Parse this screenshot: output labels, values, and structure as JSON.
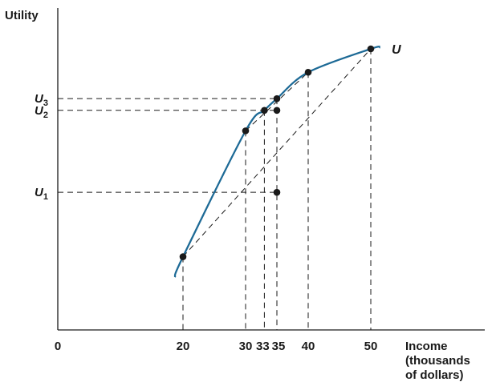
{
  "chart_data": {
    "type": "line",
    "ylabel": "Utility",
    "xlabel_lines": [
      "Income",
      "(thousands",
      "of dollars)"
    ],
    "origin_label": "0",
    "x_ticks": [
      {
        "value": 20,
        "label": "20"
      },
      {
        "value": 30,
        "label": "30"
      },
      {
        "value": 33,
        "label": "33"
      },
      {
        "value": 35,
        "label": "35"
      },
      {
        "value": 40,
        "label": "40"
      },
      {
        "value": 50,
        "label": "50"
      }
    ],
    "y_ticks": [
      {
        "key": "U3",
        "base": "U",
        "sub": "3"
      },
      {
        "key": "U2",
        "base": "U",
        "sub": "2"
      },
      {
        "key": "U1",
        "base": "U",
        "sub": "1"
      }
    ],
    "curve_label": "U",
    "series": [
      {
        "curve": [
          [
            18.7,
            0.18
          ],
          [
            20,
            0.25
          ],
          [
            30,
            0.68
          ],
          [
            33,
            0.75
          ],
          [
            35,
            0.79
          ],
          [
            40,
            0.88
          ],
          [
            50,
            0.96
          ],
          [
            51.5,
            0.965
          ]
        ]
      }
    ],
    "points": [
      {
        "x": 20,
        "y": 0.25
      },
      {
        "x": 30,
        "y": 0.68
      },
      {
        "x": 33,
        "y": 0.75
      },
      {
        "x": 35,
        "y": 0.79
      },
      {
        "x": 35,
        "y": 0.75
      },
      {
        "x": 35,
        "y": 0.47
      },
      {
        "x": 40,
        "y": 0.88
      },
      {
        "x": 50,
        "y": 0.96
      }
    ],
    "chords": [
      {
        "from": [
          20,
          0.25
        ],
        "to": [
          50,
          0.96
        ]
      },
      {
        "from": [
          30,
          0.68
        ],
        "to": [
          40,
          0.88
        ]
      }
    ],
    "vertical_guides": [
      {
        "x": 20,
        "y": 0.25
      },
      {
        "x": 30,
        "y": 0.68
      },
      {
        "x": 33,
        "y": 0.75
      },
      {
        "x": 35,
        "y": 0.79
      },
      {
        "x": 40,
        "y": 0.88
      },
      {
        "x": 50,
        "y": 0.96
      }
    ],
    "horizontal_guides": [
      {
        "key": "U3",
        "y": 0.79,
        "x_end": 35
      },
      {
        "key": "U2",
        "y": 0.75,
        "x_end": 35
      },
      {
        "key": "U1",
        "y": 0.47,
        "x_end": 35
      }
    ],
    "xlim": [
      0,
      63
    ],
    "ylim": [
      0,
      1.1
    ],
    "colors": {
      "curve": "#1d6a96",
      "ink": "#1a1a1a"
    }
  }
}
